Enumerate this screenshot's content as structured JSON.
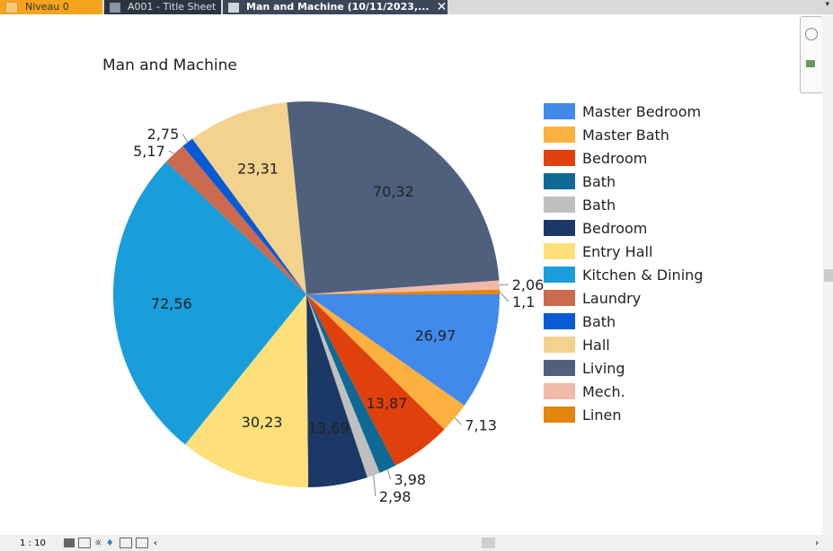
{
  "tabs": [
    {
      "label": "Niveau 0",
      "icon": "floor-plan-icon"
    },
    {
      "label": "A001 - Title Sheet",
      "icon": "sheet-icon"
    },
    {
      "label": "Man and Machine (10/11/2023,...",
      "icon": "schedule-icon",
      "active": true
    }
  ],
  "status": {
    "scale": "1 : 10"
  },
  "chart_data": {
    "type": "pie",
    "title": "Man and Machine",
    "legend_position": "right",
    "start": "3 o'clock, clockwise",
    "slices": [
      {
        "name": "Master Bedroom",
        "value": 26.97,
        "label": "26,97",
        "color": "#4189eb"
      },
      {
        "name": "Master Bath",
        "value": 7.13,
        "label": "7,13",
        "color": "#fbb040"
      },
      {
        "name": "Bedroom",
        "value": 13.87,
        "label": "13,87",
        "color": "#e0400c"
      },
      {
        "name": "Bath",
        "value": 3.98,
        "label": "3,98",
        "color": "#0e6a94"
      },
      {
        "name": "Bath",
        "value": 2.98,
        "label": "2,98",
        "color": "#bfbfbf"
      },
      {
        "name": "Bedroom",
        "value": 13.69,
        "label": "13,69",
        "color": "#1b3866"
      },
      {
        "name": "Entry Hall",
        "value": 30.23,
        "label": "30,23",
        "color": "#fde07a"
      },
      {
        "name": "Kitchen & Dining",
        "value": 72.56,
        "label": "72,56",
        "color": "#1a9ddb"
      },
      {
        "name": "Laundry",
        "value": 5.17,
        "label": "5,17",
        "color": "#cb6a4f"
      },
      {
        "name": "Bath",
        "value": 2.75,
        "label": "2,75",
        "color": "#0a5ad6"
      },
      {
        "name": "Hall",
        "value": 23.31,
        "label": "23,31",
        "color": "#f3d28d"
      },
      {
        "name": "Living",
        "value": 70.32,
        "label": "70,32",
        "color": "#4f607d"
      },
      {
        "name": "Mech.",
        "value": 2.06,
        "label": "2,06",
        "color": "#f1b9a8"
      },
      {
        "name": "Linen",
        "value": 1.1,
        "label": "1,1",
        "color": "#e3860d"
      }
    ]
  }
}
